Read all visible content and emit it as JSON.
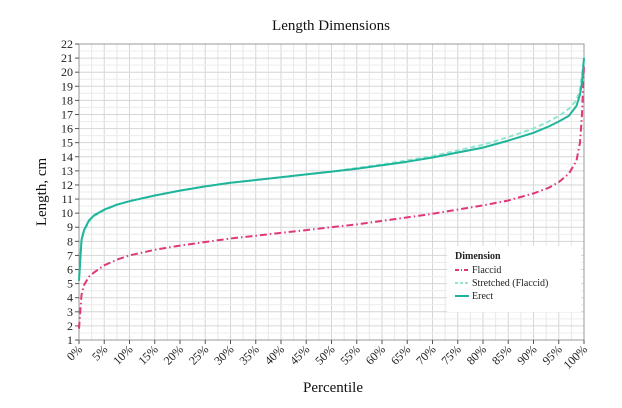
{
  "chart_data": {
    "type": "line",
    "title": "Length Dimensions",
    "xlabel": "Percentile",
    "ylabel": "Length, cm",
    "xlim": [
      0,
      100
    ],
    "ylim": [
      1,
      22
    ],
    "grid": true,
    "x_ticks": [
      "0%",
      "5%",
      "10%",
      "15%",
      "20%",
      "25%",
      "30%",
      "35%",
      "40%",
      "45%",
      "50%",
      "55%",
      "60%",
      "65%",
      "70%",
      "75%",
      "80%",
      "85%",
      "90%",
      "95%",
      "100%"
    ],
    "y_ticks": [
      1,
      2,
      3,
      4,
      5,
      6,
      7,
      8,
      9,
      10,
      11,
      12,
      13,
      14,
      15,
      16,
      17,
      18,
      19,
      20,
      21,
      22
    ],
    "legend": {
      "title": "Dimension",
      "placement": "lower-right"
    },
    "x": [
      0,
      0.5,
      1,
      2,
      3,
      5,
      7.5,
      10,
      15,
      20,
      25,
      30,
      35,
      40,
      45,
      50,
      55,
      60,
      65,
      70,
      75,
      80,
      85,
      90,
      93,
      95,
      97,
      98.5,
      99.2,
      99.6,
      100
    ],
    "series": [
      {
        "name": "Flaccid",
        "color": "#e0377a",
        "dash": "dashdot",
        "values": [
          1.8,
          4.2,
          4.9,
          5.5,
          5.8,
          6.3,
          6.7,
          7.0,
          7.4,
          7.7,
          7.95,
          8.2,
          8.4,
          8.6,
          8.8,
          9.0,
          9.2,
          9.45,
          9.7,
          9.95,
          10.25,
          10.55,
          10.9,
          11.4,
          11.8,
          12.2,
          12.8,
          13.7,
          15.0,
          17.0,
          20.5
        ]
      },
      {
        "name": "Stretched (Flaccid)",
        "color": "#8fe6d2",
        "dash": "dashed",
        "values": [
          5.5,
          8.0,
          8.7,
          9.4,
          9.8,
          10.2,
          10.6,
          10.85,
          11.25,
          11.6,
          11.9,
          12.15,
          12.35,
          12.55,
          12.75,
          12.95,
          13.2,
          13.45,
          13.75,
          14.05,
          14.45,
          14.85,
          15.4,
          16.0,
          16.5,
          16.9,
          17.4,
          18.0,
          18.8,
          19.8,
          21.1
        ]
      },
      {
        "name": "Erect",
        "color": "#1fb59b",
        "dash": "solid",
        "values": [
          5.2,
          8.1,
          8.8,
          9.5,
          9.85,
          10.25,
          10.6,
          10.85,
          11.25,
          11.6,
          11.9,
          12.15,
          12.35,
          12.55,
          12.75,
          12.95,
          13.15,
          13.4,
          13.65,
          13.95,
          14.3,
          14.65,
          15.15,
          15.7,
          16.15,
          16.5,
          16.9,
          17.6,
          18.4,
          19.3,
          21.0
        ]
      }
    ]
  }
}
